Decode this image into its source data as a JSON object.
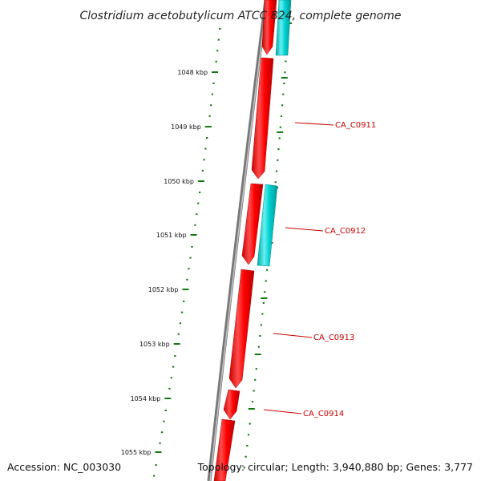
{
  "map": {
    "title": "Clostridium acetobutylicum ATCC 824, complete genome",
    "accession_text": "Accession: NC_003030",
    "summary_text": "Topology: circular; Length: 3,940,880 bp; Genes: 3,777"
  },
  "ruler": {
    "tick_labels": [
      "1048 kbp",
      "1049 kbp",
      "1050 kbp",
      "1051 kbp",
      "1052 kbp",
      "1053 kbp",
      "1054 kbp",
      "1055 kbp"
    ]
  },
  "genes": [
    {
      "label": "CA_C0911"
    },
    {
      "label": "CA_C0912"
    },
    {
      "label": "CA_C0913"
    },
    {
      "label": "CA_C0914"
    }
  ],
  "colors": {
    "forward_feature": "#ff0000",
    "reverse_feature": "#00c8c8",
    "backbone": "#777777",
    "ruler": "#117711",
    "gene_label": "#cc0000"
  }
}
